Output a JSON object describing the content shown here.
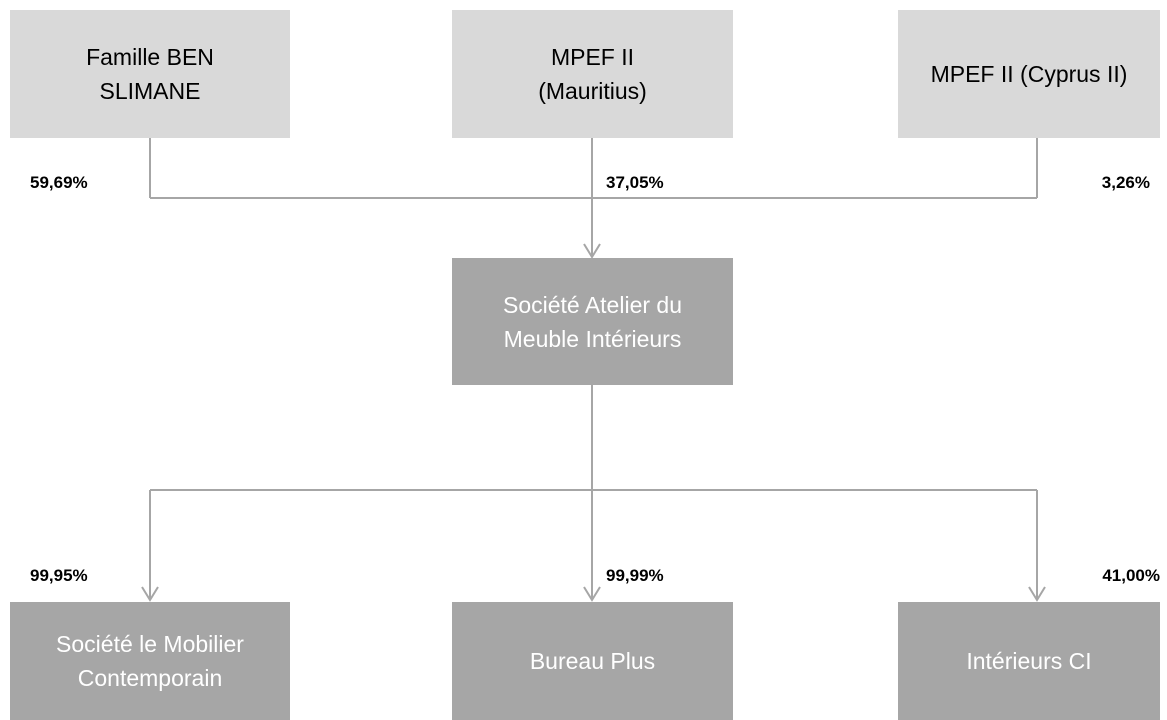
{
  "shareholders": [
    {
      "label": [
        "Famille BEN",
        "SLIMANE"
      ],
      "share": "59,69%"
    },
    {
      "label": [
        "MPEF II",
        "(Mauritius)"
      ],
      "share": "37,05%"
    },
    {
      "label": [
        "MPEF II (Cyprus II)"
      ],
      "share": "3,26%"
    }
  ],
  "company": {
    "label": [
      "Société Atelier du",
      "Meuble Intérieurs"
    ]
  },
  "subsidiaries": [
    {
      "label": [
        "Société le Mobilier",
        "Contemporain"
      ],
      "share": "99,95%"
    },
    {
      "label": [
        "Bureau Plus"
      ],
      "share": "99,99%"
    },
    {
      "label": [
        "Intérieurs CI"
      ],
      "share": "41,00%"
    }
  ]
}
